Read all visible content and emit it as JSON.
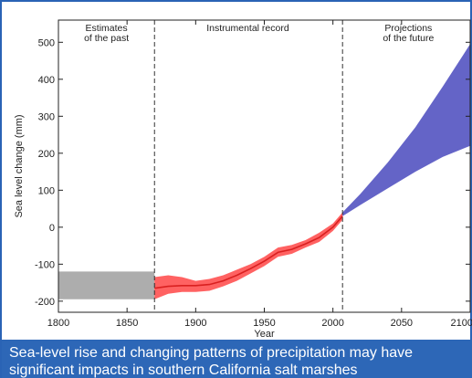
{
  "chart_data": {
    "type": "area",
    "xlabel": "Year",
    "ylabel": "Sea level change (mm)",
    "xlim": [
      1800,
      2100
    ],
    "ylim": [
      -230,
      560
    ],
    "x_ticks": [
      1800,
      1850,
      1900,
      1950,
      2000,
      2050,
      2100
    ],
    "y_ticks": [
      -200,
      -100,
      0,
      100,
      200,
      300,
      400,
      500
    ],
    "x_tick_labels": [
      "1800",
      "1850",
      "1900",
      "1950",
      "2000",
      "2050",
      "2100"
    ],
    "y_tick_labels": [
      "-200",
      "-100",
      "0",
      "100",
      "200",
      "300",
      "400",
      "500"
    ],
    "dividers": [
      1870,
      2007
    ],
    "regions": [
      {
        "lines": [
          "Estimates",
          "of the past"
        ],
        "x_center": 1835
      },
      {
        "lines": [
          "Instrumental record"
        ],
        "x_center": 1938
      },
      {
        "lines": [
          "Projections",
          "of the future"
        ],
        "x_center": 2055
      }
    ],
    "series": [
      {
        "kind": "past_estimate_band",
        "color": "#a9a9a9",
        "x": [
          1800,
          1870
        ],
        "lower": [
          -195,
          -195
        ],
        "upper": [
          -120,
          -120
        ]
      },
      {
        "kind": "instrumental_band",
        "color": "#ff5a5a",
        "line_color": "#d92020",
        "x": [
          1870,
          1880,
          1890,
          1900,
          1910,
          1920,
          1930,
          1940,
          1950,
          1960,
          1970,
          1980,
          1990,
          2000,
          2007
        ],
        "lower": [
          -195,
          -180,
          -175,
          -175,
          -172,
          -160,
          -145,
          -125,
          -105,
          -80,
          -72,
          -55,
          -40,
          -10,
          20
        ],
        "upper": [
          -135,
          -130,
          -135,
          -145,
          -140,
          -130,
          -115,
          -100,
          -80,
          -55,
          -48,
          -35,
          -15,
          10,
          40
        ],
        "center": [
          -165,
          -160,
          -158,
          -158,
          -155,
          -145,
          -130,
          -112,
          -92,
          -68,
          -60,
          -45,
          -28,
          0,
          30
        ]
      },
      {
        "kind": "projection_band",
        "color": "#5c5cc4",
        "x": [
          2007,
          2020,
          2040,
          2060,
          2080,
          2100
        ],
        "lower": [
          30,
          60,
          105,
          150,
          190,
          220
        ],
        "upper": [
          40,
          90,
          175,
          270,
          380,
          495
        ]
      }
    ]
  },
  "caption": {
    "line1": "Sea-level rise and changing patterns of precipitation may have",
    "line2": "significant impacts in southern California salt marshes"
  }
}
